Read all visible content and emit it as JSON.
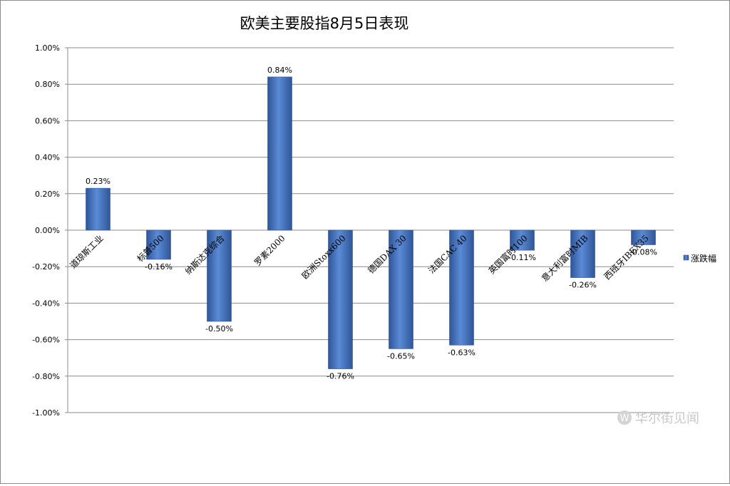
{
  "chart_data": {
    "type": "bar",
    "title": "欧美主要股指8月5日表现",
    "categories": [
      "道琼斯工业",
      "标普500",
      "纳斯达克综合",
      "罗素2000",
      "欧洲Stoxx600",
      "德国DAX 30",
      "法国CAC 40",
      "英国富时100",
      "意大利富时MIB",
      "西班牙IBEX35"
    ],
    "series": [
      {
        "name": "涨跌幅",
        "values": [
          0.23,
          -0.16,
          -0.5,
          0.84,
          -0.76,
          -0.65,
          -0.63,
          -0.11,
          -0.26,
          -0.08
        ]
      }
    ],
    "data_labels": [
      "0.23%",
      "-0.16%",
      "-0.50%",
      "0.84%",
      "-0.76%",
      "-0.65%",
      "-0.63%",
      "-0.11%",
      "-0.26%",
      "-0.08%"
    ],
    "yticks": [
      1.0,
      0.8,
      0.6,
      0.4,
      0.2,
      0.0,
      -0.2,
      -0.4,
      -0.6,
      -0.8,
      -1.0
    ],
    "ytick_labels": [
      "1.00%",
      "0.80%",
      "0.60%",
      "0.40%",
      "0.20%",
      "0.00%",
      "-0.20%",
      "-0.40%",
      "-0.60%",
      "-0.80%",
      "-1.00%"
    ],
    "ylim": [
      -1.0,
      1.0
    ],
    "grid": true,
    "legend_position": "right",
    "bar_color": "#4472c4"
  },
  "watermark": {
    "icon": "w-logo-icon",
    "text": "华尔街见闻"
  }
}
